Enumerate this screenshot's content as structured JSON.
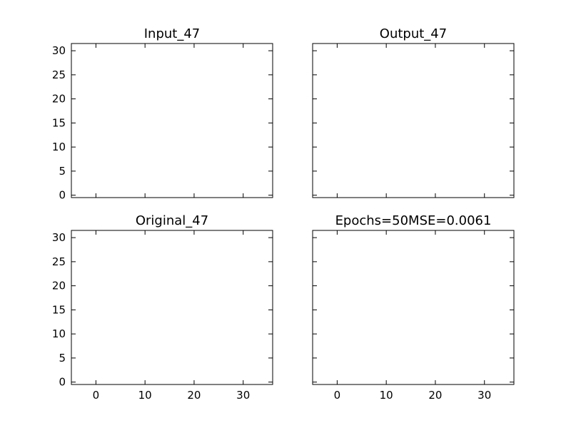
{
  "chart_data": {
    "type": "image_grid",
    "x_ticks": [
      0,
      10,
      20,
      30
    ],
    "y_ticks": [
      0,
      5,
      10,
      15,
      20,
      25,
      30
    ],
    "xlim": [
      -5,
      36
    ],
    "ylim": [
      31.5,
      -0.5
    ],
    "image_extent": [
      -0.5,
      31.5
    ],
    "panels": [
      {
        "id": "input",
        "title": "Input_47",
        "has_image": true,
        "show_x_tick_labels": false,
        "show_y_tick_labels": true,
        "colors": {
          "background": "#e6e6e6",
          "horizon": "#f1f1f1",
          "body": "#3a3a3a",
          "head": "#f0f0f0",
          "shadow": "#c4c4c4"
        }
      },
      {
        "id": "output",
        "title": "Output_47",
        "has_image": true,
        "show_x_tick_labels": false,
        "show_y_tick_labels": false,
        "colors": {
          "background": "#90a8c4",
          "horizon": "#a3b4c6",
          "body": "#5a4a35",
          "head": "#c8bfa8",
          "shadow": "#b8ad95"
        }
      },
      {
        "id": "original",
        "title": "Original_47",
        "has_image": true,
        "show_x_tick_labels": true,
        "show_y_tick_labels": true,
        "colors": {
          "background": "#a6a6a6",
          "horizon": "#b1b1b1",
          "body": "#b5722e",
          "head": "#c88a4a",
          "shadow": "#8a8a8a"
        }
      },
      {
        "id": "summary",
        "title": "Epochs=50MSE=0.0061",
        "has_image": false,
        "show_x_tick_labels": true,
        "show_y_tick_labels": false
      }
    ]
  }
}
